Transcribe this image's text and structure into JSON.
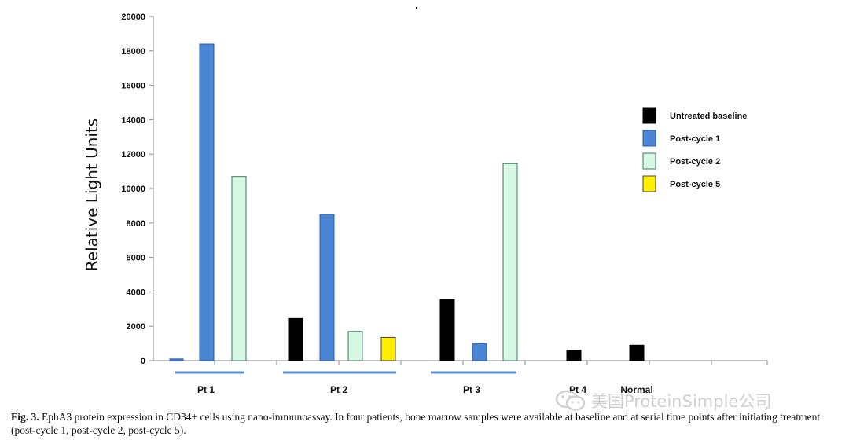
{
  "chart_data": {
    "type": "bar",
    "ylabel": "Relative Light Units",
    "ylim": [
      0,
      20000
    ],
    "yticks": [
      "0",
      "2000",
      "4000",
      "6000",
      "8000",
      "10000",
      "12000",
      "14000",
      "16000",
      "18000",
      "20000"
    ],
    "legend_position": "right",
    "series": [
      {
        "name": "Untreated baseline",
        "color": "#000000"
      },
      {
        "name": "Post-cycle 1",
        "color": "#4a86d4"
      },
      {
        "name": "Post-cycle 2",
        "color": "#d6f7e2"
      },
      {
        "name": "Post-cycle 5",
        "color": "#ffee00"
      }
    ],
    "groups": [
      {
        "label": "Pt 1",
        "values": {
          "Untreated baseline": null,
          "Post-cycle 1": 18400,
          "Post-cycle 2": 10700,
          "Post-cycle 5": null
        },
        "small_marker": 100
      },
      {
        "label": "Pt 2",
        "values": {
          "Untreated baseline": 2450,
          "Post-cycle 1": 8500,
          "Post-cycle 2": 1700,
          "Post-cycle 5": 1350
        }
      },
      {
        "label": "Pt 3",
        "values": {
          "Untreated baseline": 3550,
          "Post-cycle 1": 1000,
          "Post-cycle 2": 11450,
          "Post-cycle 5": null
        }
      },
      {
        "label": "Pt 4",
        "values": {
          "Untreated baseline": 600,
          "Post-cycle 1": null,
          "Post-cycle 2": null,
          "Post-cycle 5": null
        }
      },
      {
        "label": "Normal",
        "values": {
          "Untreated baseline": 900,
          "Post-cycle 1": null,
          "Post-cycle 2": null,
          "Post-cycle 5": null
        }
      }
    ]
  },
  "caption": {
    "fig_label": "Fig. 3.",
    "text": "EphA3 protein expression in CD34+ cells using nano-immunoassay. In four patients, bone marrow samples were available at baseline and at serial time points after initiating treatment (post-cycle 1, post-cycle 2, post-cycle 5)."
  },
  "watermark": {
    "text": "美国ProteinSimple公司",
    "icon": "wechat-icon"
  }
}
